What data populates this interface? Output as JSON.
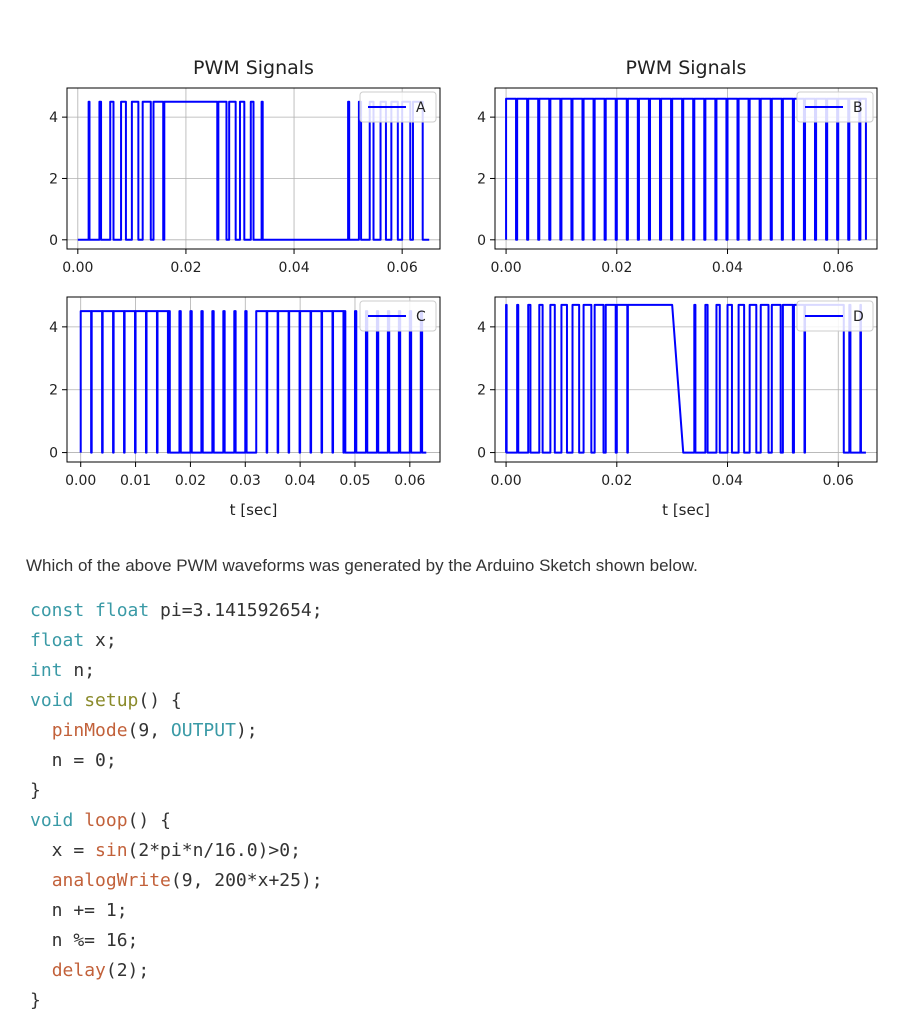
{
  "chart_data": [
    {
      "type": "line",
      "title": "PWM Signals",
      "series": [
        {
          "name": "A",
          "color": "#0000ff"
        }
      ],
      "xlim": [
        -0.002,
        0.067
      ],
      "ylim": [
        -0.3,
        4.95
      ],
      "xticks": [
        0.0,
        0.02,
        0.04,
        0.06
      ],
      "xtick_labels": [
        "0.00",
        "0.02",
        "0.04",
        "0.06"
      ],
      "yticks": [
        0,
        2,
        4
      ],
      "ytick_labels": [
        "0",
        "2",
        "4"
      ],
      "xlabel": "",
      "grid": true,
      "legend": "top-right",
      "pwm_period_sec": 0.002,
      "pwm_start_sec": 0.0,
      "pwm_end_sec": 0.065,
      "high_level": 4.5,
      "low_level": 0.0,
      "duty_by_period": [
        0,
        0.08,
        0.15,
        0.3,
        0.45,
        0.6,
        0.75,
        0.9,
        1,
        1,
        1,
        1,
        0.9,
        0.75,
        0.6,
        0.4,
        0.25,
        0.1,
        0,
        0,
        0,
        0,
        0,
        0,
        0,
        0.1,
        0.2,
        0.35,
        0.5,
        0.6,
        0.75,
        0.9
      ]
    },
    {
      "type": "line",
      "title": "PWM Signals",
      "series": [
        {
          "name": "B",
          "color": "#0000ff"
        }
      ],
      "xlim": [
        -0.002,
        0.067
      ],
      "ylim": [
        -0.3,
        4.95
      ],
      "xticks": [
        0.0,
        0.02,
        0.04,
        0.06
      ],
      "xtick_labels": [
        "0.00",
        "0.02",
        "0.04",
        "0.06"
      ],
      "yticks": [
        0,
        2,
        4
      ],
      "ytick_labels": [
        "0",
        "2",
        "4"
      ],
      "xlabel": "",
      "grid": true,
      "legend": "top-right",
      "pwm_period_sec": 0.002,
      "pwm_start_sec": 0.0,
      "pwm_end_sec": 0.065,
      "high_level": 4.6,
      "low_level": 0.0,
      "duty_by_period": [
        0.9,
        0.9,
        0.9,
        0.9,
        0.9,
        0.9,
        0.9,
        0.9,
        0.9,
        0.9,
        0.9,
        0.9,
        0.9,
        0.9,
        0.9,
        0.9,
        0.9,
        0.9,
        0.9,
        0.9,
        0.9,
        0.9,
        0.9,
        0.9,
        0.9,
        0.9,
        0.9,
        0.9,
        0.9,
        0.9,
        0.9,
        0.9
      ]
    },
    {
      "type": "line",
      "title": "",
      "series": [
        {
          "name": "C",
          "color": "#0000ff"
        }
      ],
      "xlim": [
        -0.0025,
        0.0655
      ],
      "ylim": [
        -0.3,
        4.95
      ],
      "xticks": [
        0.0,
        0.01,
        0.02,
        0.03,
        0.04,
        0.05,
        0.06
      ],
      "xtick_labels": [
        "0.00",
        "0.01",
        "0.02",
        "0.03",
        "0.04",
        "0.05",
        "0.06"
      ],
      "yticks": [
        0,
        2,
        4
      ],
      "ytick_labels": [
        "0",
        "2",
        "4"
      ],
      "xlabel": "t [sec]",
      "grid": true,
      "legend": "top-right",
      "pwm_period_sec": 0.002,
      "pwm_start_sec": 0.0,
      "pwm_end_sec": 0.063,
      "high_level": 4.5,
      "low_level": 0.0,
      "duty_by_period": [
        0.95,
        0.95,
        0.95,
        0.95,
        0.95,
        0.95,
        0.95,
        0.95,
        0.12,
        0.12,
        0.12,
        0.12,
        0.12,
        0.12,
        0.12,
        0.12,
        0.95,
        0.95,
        0.95,
        0.95,
        0.95,
        0.95,
        0.95,
        0.95,
        0.12,
        0.12,
        0.12,
        0.12,
        0.12,
        0.12,
        0.12,
        0.12
      ]
    },
    {
      "type": "line",
      "title": "",
      "series": [
        {
          "name": "D",
          "color": "#0000ff"
        }
      ],
      "xlim": [
        -0.002,
        0.067
      ],
      "ylim": [
        -0.3,
        4.95
      ],
      "xticks": [
        0.0,
        0.02,
        0.04,
        0.06
      ],
      "xtick_labels": [
        "0.00",
        "0.02",
        "0.04",
        "0.06"
      ],
      "yticks": [
        0,
        2,
        4
      ],
      "ytick_labels": [
        "0",
        "2",
        "4"
      ],
      "xlabel": "t [sec]",
      "grid": true,
      "legend": "top-right",
      "pwm_period_sec": 0.002,
      "pwm_start_sec": 0.0,
      "pwm_end_sec": 0.065,
      "high_level": 4.7,
      "low_level": 0.0,
      "duty_by_period": [
        0.05,
        0.1,
        0.2,
        0.3,
        0.4,
        0.5,
        0.6,
        0.7,
        0.8,
        0.9,
        0.95,
        1,
        1,
        1,
        1,
        0,
        0,
        0.1,
        0.2,
        0.3,
        0.4,
        0.5,
        0.6,
        0.7,
        0.8,
        0.9,
        0.95,
        1,
        1,
        1,
        0.5,
        0.1
      ]
    }
  ],
  "question": "Which of the above PWM waveforms was generated by the Arduino Sketch shown below.",
  "code": {
    "l1_kw": "const float",
    "l1_rest": " pi=3.141592654;",
    "l2_kw": "float",
    "l2_rest": " x;",
    "l3_kw": "int",
    "l3_rest": " n;",
    "l4_kw": "void",
    "l4_sp": " ",
    "l4_fn": "setup",
    "l4_rest": "() {",
    "l5_indent": "  ",
    "l5_fn": "pinMode",
    "l5_mid": "(9, ",
    "l5_cn": "OUTPUT",
    "l5_rest": ");",
    "l6": "  n = 0;",
    "l7": "}",
    "l8_kw": "void",
    "l8_sp": " ",
    "l8_fn": "loop",
    "l8_rest": "() {",
    "l9_pre": "  x = ",
    "l9_fn": "sin",
    "l9_rest": "(2*pi*n/16.0)>0;",
    "l10_indent": "  ",
    "l10_fn": "analogWrite",
    "l10_rest": "(9, 200*x+25);",
    "l11": "  n += 1;",
    "l12": "  n %= 16;",
    "l13_indent": "  ",
    "l13_fn": "delay",
    "l13_rest": "(2);",
    "l14": "}"
  }
}
